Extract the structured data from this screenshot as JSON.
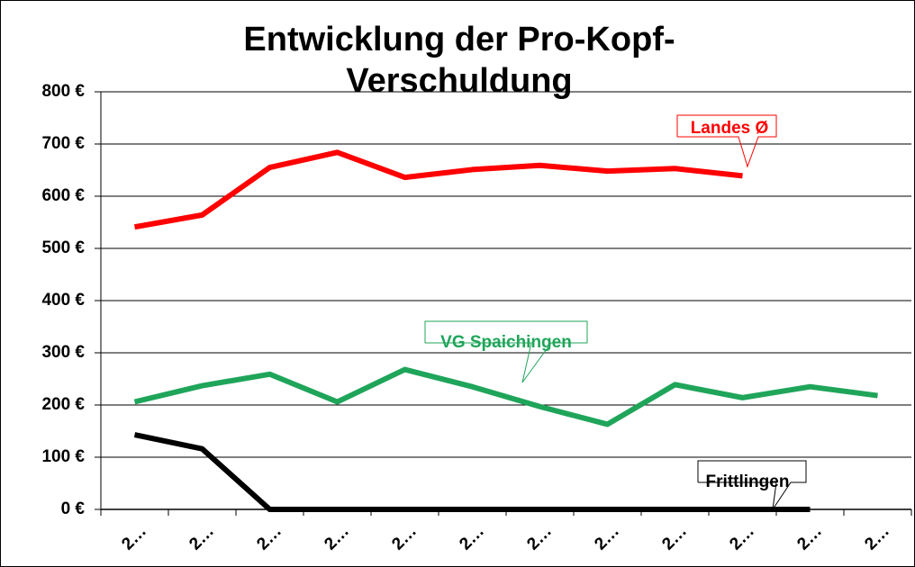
{
  "chart_data": {
    "type": "line",
    "title": [
      "Entwicklung der Pro-Kopf-",
      "Verschuldung"
    ],
    "categories": [
      "2…",
      "2…",
      "2…",
      "2…",
      "2…",
      "2…",
      "2…",
      "2…",
      "2…",
      "2…",
      "2…",
      "2…"
    ],
    "series": [
      {
        "name": "Landes Ø",
        "color": "#ff0000",
        "values": [
          541,
          564,
          655,
          684,
          636,
          651,
          659,
          648,
          653,
          639,
          null,
          null
        ]
      },
      {
        "name": "VG Spaichingen",
        "color": "#1fa55a",
        "values": [
          206,
          237,
          259,
          206,
          268,
          235,
          197,
          163,
          239,
          214,
          235,
          218
        ]
      },
      {
        "name": "Frittlingen",
        "color": "#000000",
        "values": [
          143,
          116,
          0,
          0,
          0,
          0,
          0,
          0,
          0,
          0,
          0,
          null
        ]
      }
    ],
    "ylim": [
      0,
      800
    ],
    "yticks": [
      {
        "value": 0,
        "label": "0 €"
      },
      {
        "value": 100,
        "label": "100 €"
      },
      {
        "value": 200,
        "label": "200 €"
      },
      {
        "value": 300,
        "label": "300 €"
      },
      {
        "value": 400,
        "label": "400 €"
      },
      {
        "value": 500,
        "label": "500 €"
      },
      {
        "value": 600,
        "label": "600 €"
      },
      {
        "value": 700,
        "label": "700 €"
      },
      {
        "value": 800,
        "label": "800 €"
      }
    ],
    "grid": true
  }
}
